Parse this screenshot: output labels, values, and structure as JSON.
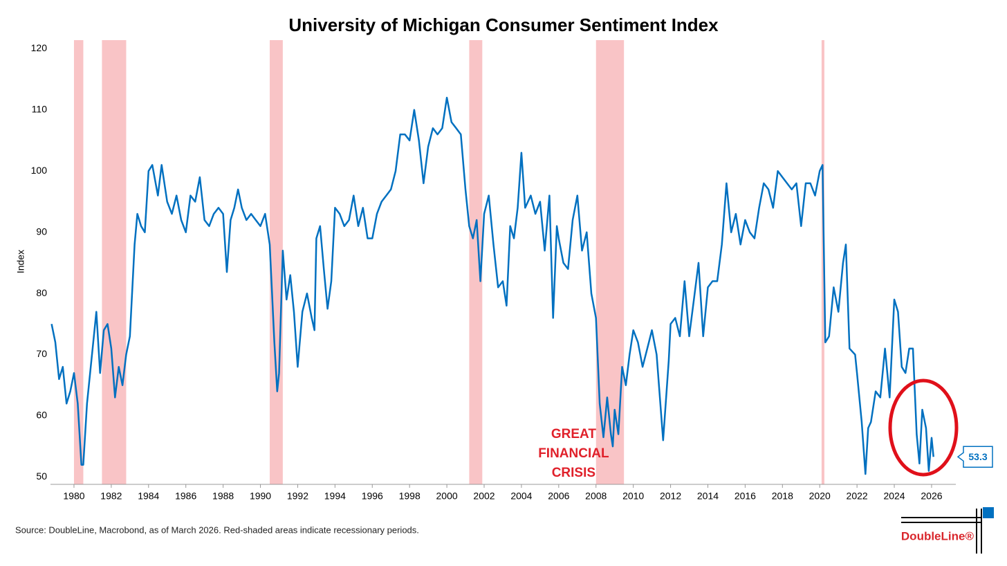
{
  "chart_data": {
    "type": "line",
    "title": "University of Michigan Consumer Sentiment Index",
    "y_label": "Index",
    "source": "Source: DoubleLine, Macrobond, as of March 2026. Red-shaded areas indicate recessionary periods.",
    "logo": "DoubleLine®",
    "annotation": "GREAT FINANCIAL CRISIS",
    "xlim": [
      1978.74,
      2027.3
    ],
    "ylim": [
      48.8,
      121.4
    ],
    "xticks": [
      1980,
      1982,
      1984,
      1986,
      1988,
      1990,
      1992,
      1994,
      1996,
      1998,
      2000,
      2002,
      2004,
      2006,
      2008,
      2010,
      2012,
      2014,
      2016,
      2018,
      2020,
      2022,
      2024,
      2026
    ],
    "yticks": [
      50,
      60,
      70,
      80,
      90,
      100,
      110,
      120
    ],
    "recession_color": "#f9c4c6",
    "recessions": [
      [
        1980.0,
        1980.5
      ],
      [
        1981.5,
        1982.8
      ],
      [
        1990.5,
        1991.2
      ],
      [
        2001.2,
        2001.9
      ],
      [
        2008.0,
        2009.5
      ],
      [
        2020.1,
        2020.25
      ]
    ],
    "x": [
      1978.8,
      1979.0,
      1979.2,
      1979.4,
      1979.6,
      1979.8,
      1980.0,
      1980.2,
      1980.4,
      1980.5,
      1980.7,
      1981.0,
      1981.2,
      1981.4,
      1981.6,
      1981.8,
      1982.0,
      1982.2,
      1982.4,
      1982.6,
      1982.8,
      1983.0,
      1983.25,
      1983.4,
      1983.6,
      1983.8,
      1984.0,
      1984.2,
      1984.5,
      1984.7,
      1985.0,
      1985.25,
      1985.5,
      1985.75,
      1986.0,
      1986.25,
      1986.5,
      1986.75,
      1987.0,
      1987.25,
      1987.5,
      1987.75,
      1988.0,
      1988.2,
      1988.4,
      1988.6,
      1988.8,
      1989.0,
      1989.25,
      1989.5,
      1989.75,
      1990.0,
      1990.25,
      1990.5,
      1990.75,
      1990.9,
      1991.0,
      1991.2,
      1991.4,
      1991.6,
      1991.8,
      1992.0,
      1992.25,
      1992.5,
      1992.75,
      1992.9,
      1993.0,
      1993.2,
      1993.4,
      1993.6,
      1993.8,
      1994.0,
      1994.25,
      1994.5,
      1994.75,
      1995.0,
      1995.25,
      1995.5,
      1995.75,
      1996.0,
      1996.25,
      1996.5,
      1996.75,
      1997.0,
      1997.25,
      1997.5,
      1997.75,
      1998.0,
      1998.25,
      1998.5,
      1998.75,
      1999.0,
      1999.25,
      1999.5,
      1999.75,
      2000.0,
      2000.25,
      2000.5,
      2000.75,
      2001.0,
      2001.2,
      2001.4,
      2001.6,
      2001.8,
      2002.0,
      2002.25,
      2002.5,
      2002.75,
      2003.0,
      2003.2,
      2003.4,
      2003.6,
      2003.8,
      2004.0,
      2004.2,
      2004.5,
      2004.75,
      2005.0,
      2005.25,
      2005.5,
      2005.7,
      2005.9,
      2006.0,
      2006.25,
      2006.5,
      2006.75,
      2007.0,
      2007.25,
      2007.5,
      2007.75,
      2008.0,
      2008.2,
      2008.4,
      2008.6,
      2008.8,
      2008.9,
      2009.0,
      2009.2,
      2009.4,
      2009.6,
      2009.8,
      2010.0,
      2010.25,
      2010.5,
      2010.75,
      2011.0,
      2011.25,
      2011.6,
      2011.9,
      2012.0,
      2012.25,
      2012.5,
      2012.75,
      2013.0,
      2013.25,
      2013.5,
      2013.75,
      2014.0,
      2014.25,
      2014.5,
      2014.75,
      2015.0,
      2015.25,
      2015.5,
      2015.75,
      2016.0,
      2016.25,
      2016.5,
      2016.75,
      2017.0,
      2017.25,
      2017.5,
      2017.75,
      2018.0,
      2018.25,
      2018.5,
      2018.75,
      2019.0,
      2019.25,
      2019.5,
      2019.75,
      2020.0,
      2020.15,
      2020.3,
      2020.5,
      2020.75,
      2021.0,
      2021.25,
      2021.4,
      2021.6,
      2021.9,
      2022.0,
      2022.25,
      2022.45,
      2022.6,
      2022.75,
      2023.0,
      2023.25,
      2023.5,
      2023.75,
      2024.0,
      2024.2,
      2024.4,
      2024.6,
      2024.8,
      2025.0,
      2025.2,
      2025.35,
      2025.5,
      2025.7,
      2025.85,
      2026.0,
      2026.1
    ],
    "series": [
      {
        "color": "#0070c0",
        "values": [
          75,
          72,
          66,
          68,
          62,
          64,
          67,
          62,
          52,
          52,
          62,
          71,
          77,
          67,
          74,
          75,
          71,
          63,
          68,
          65,
          70,
          73,
          88,
          93,
          91,
          90,
          100,
          101,
          96,
          101,
          95,
          93,
          96,
          92,
          90,
          96,
          95,
          99,
          92,
          91,
          93,
          94,
          93,
          83.5,
          92,
          94,
          97,
          94,
          92,
          93,
          92,
          91,
          93,
          88,
          72,
          64,
          67,
          87,
          79,
          83,
          77,
          68,
          77,
          80,
          76,
          74,
          89,
          91,
          84,
          77.5,
          82,
          94,
          93,
          91,
          92,
          96,
          91,
          94,
          89,
          89,
          93,
          95,
          96,
          97,
          100,
          106,
          106,
          105,
          110,
          105,
          98,
          104,
          107,
          106,
          107,
          112,
          108,
          107,
          106,
          97,
          91,
          89,
          92,
          82,
          93,
          96,
          88,
          81,
          82,
          78,
          91,
          89,
          94,
          103,
          94,
          96,
          93,
          95,
          87,
          96,
          76,
          91,
          89,
          85,
          84,
          92,
          96,
          87,
          90,
          80,
          76,
          62,
          56.5,
          63,
          57,
          55,
          61,
          57,
          68,
          65,
          70,
          74,
          72,
          68,
          71,
          74,
          70,
          56,
          69,
          75,
          76,
          73,
          82,
          73,
          79,
          85,
          73,
          81,
          82,
          82,
          88,
          98,
          90,
          93,
          88,
          92,
          90,
          89,
          94,
          98,
          97,
          94,
          100,
          99,
          98,
          97,
          98,
          91,
          98,
          98,
          96,
          100,
          101,
          72,
          73,
          81,
          77,
          85,
          88,
          71,
          70,
          67,
          59,
          50.5,
          58,
          59,
          64,
          63,
          71,
          63,
          79,
          77,
          68,
          67,
          71,
          71,
          57,
          52.2,
          61,
          58,
          51,
          56.4,
          53.3
        ]
      }
    ]
  }
}
